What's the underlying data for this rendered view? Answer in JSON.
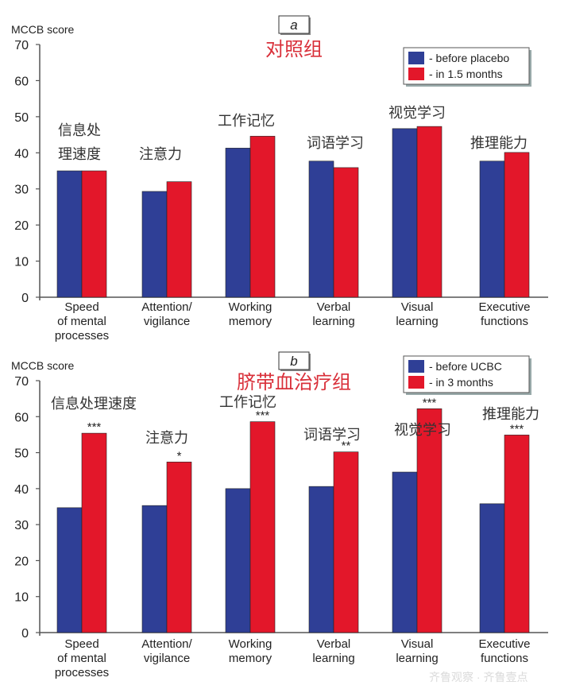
{
  "colors": {
    "before": "#2f3f96",
    "after": "#e3172a",
    "title": "#d9303a"
  },
  "watermark": "齐鲁观察 · 齐鲁壹点",
  "chart_data": [
    {
      "type": "bar",
      "panel_label": "a",
      "title": "对照组",
      "ylabel": "MCCB score",
      "ylim": [
        0,
        70
      ],
      "yticks": [
        0,
        10,
        20,
        30,
        40,
        50,
        60,
        70
      ],
      "legend_position": "top-right",
      "categories": [
        "Speed\nof mental\nprocesses",
        "Attention/\nvigilance",
        "Working\nmemory",
        "Verbal\nlearning",
        "Visual\nlearning",
        "Executive\nfunctions"
      ],
      "annotations": [
        "信息处\n理速度",
        "注意力",
        "工作记忆",
        "词语学习",
        "视觉学习",
        "推理能力"
      ],
      "significance": [
        "",
        "",
        "",
        "",
        "",
        ""
      ],
      "series": [
        {
          "name": "- before placebo",
          "color": "#2f3f96",
          "values": [
            35.0,
            29.3,
            41.3,
            37.7,
            46.7,
            37.7
          ]
        },
        {
          "name": "- in 1.5 months",
          "color": "#e3172a",
          "values": [
            35.0,
            32.0,
            44.6,
            35.9,
            47.3,
            40.1
          ]
        }
      ]
    },
    {
      "type": "bar",
      "panel_label": "b",
      "title": "脐带血治疗组",
      "ylabel": "MCCB score",
      "ylim": [
        0,
        70
      ],
      "yticks": [
        0,
        10,
        20,
        30,
        40,
        50,
        60,
        70
      ],
      "legend_position": "top-right",
      "categories": [
        "Speed\nof mental\nprocesses",
        "Attention/\nvigilance",
        "Working\nmemory",
        "Verbal\nlearning",
        "Visual\nlearning",
        "Executive\nfunctions"
      ],
      "annotations": [
        "信息处理速度",
        "注意力",
        "工作记忆",
        "词语学习",
        "视觉学习",
        "推理能力"
      ],
      "significance": [
        "***",
        "*",
        "***",
        "**",
        "***",
        "***"
      ],
      "series": [
        {
          "name": "- before UCBC",
          "color": "#2f3f96",
          "values": [
            34.7,
            35.3,
            40.0,
            40.6,
            44.6,
            35.8
          ]
        },
        {
          "name": "- in 3 months",
          "color": "#e3172a",
          "values": [
            55.4,
            47.4,
            58.6,
            50.2,
            62.2,
            54.9
          ]
        }
      ]
    }
  ]
}
